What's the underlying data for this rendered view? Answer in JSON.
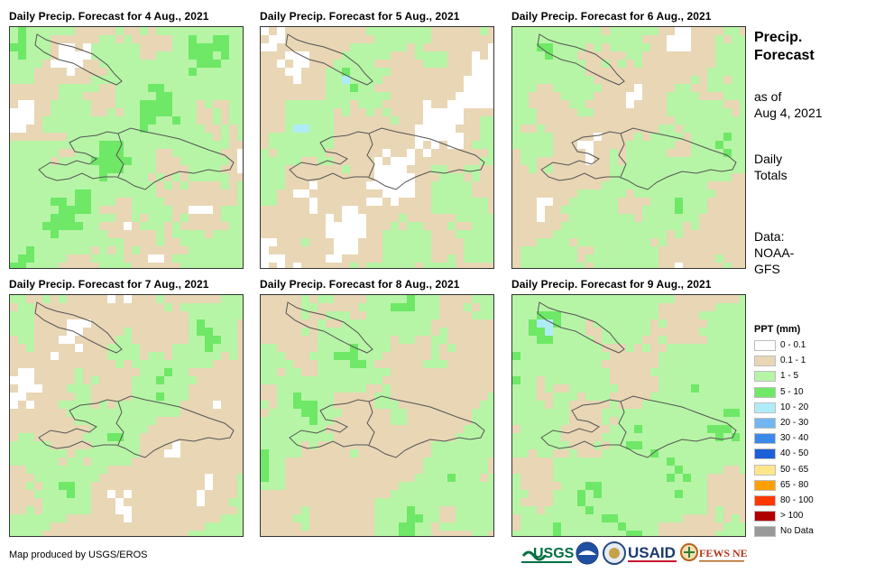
{
  "panels": [
    {
      "title": "Daily Precip. Forecast for 4 Aug., 2021"
    },
    {
      "title": "Daily Precip. Forecast for 5 Aug., 2021"
    },
    {
      "title": "Daily Precip. Forecast for 6 Aug., 2021"
    },
    {
      "title": "Daily Precip. Forecast for 7 Aug., 2021"
    },
    {
      "title": "Daily Precip. Forecast for 8 Aug., 2021"
    },
    {
      "title": "Daily Precip. Forecast for 9 Aug., 2021"
    }
  ],
  "side": {
    "title_line1": "Precip.",
    "title_line2": "Forecast",
    "asof_line1": "as of",
    "asof_line2": "Aug 4, 2021",
    "totals_line1": "Daily",
    "totals_line2": "Totals",
    "data_line1": "Data:",
    "data_line2": "NOAA-",
    "data_line3": "GFS"
  },
  "legend": {
    "title": "PPT (mm)",
    "items": [
      {
        "label": "0 - 0.1",
        "color": "#ffffff"
      },
      {
        "label": "0.1 - 1",
        "color": "#e8d6b5"
      },
      {
        "label": "1 - 5",
        "color": "#b6f5a6"
      },
      {
        "label": "5 - 10",
        "color": "#6ee866"
      },
      {
        "label": "10 - 20",
        "color": "#b0ecf7"
      },
      {
        "label": "20 - 30",
        "color": "#74b6f2"
      },
      {
        "label": "30 - 40",
        "color": "#3a88e8"
      },
      {
        "label": "40 - 50",
        "color": "#1d5fd9"
      },
      {
        "label": "50 - 65",
        "color": "#ffe68a"
      },
      {
        "label": "65 - 80",
        "color": "#ffa000"
      },
      {
        "label": "80 - 100",
        "color": "#ff3800"
      },
      {
        "label": "> 100",
        "color": "#b00000"
      },
      {
        "label": "No Data",
        "color": "#999999"
      }
    ]
  },
  "footer": {
    "credit": "Map produced by USGS/EROS"
  },
  "logos": {
    "usgs": "USGS",
    "usaid": "USAID",
    "fews": "FEWS NET",
    "usgs_icon": "usgs-logo",
    "noaa_icon": "noaa-logo",
    "dos_icon": "seal-logo",
    "fews_icon": "fews-net-logo"
  }
}
